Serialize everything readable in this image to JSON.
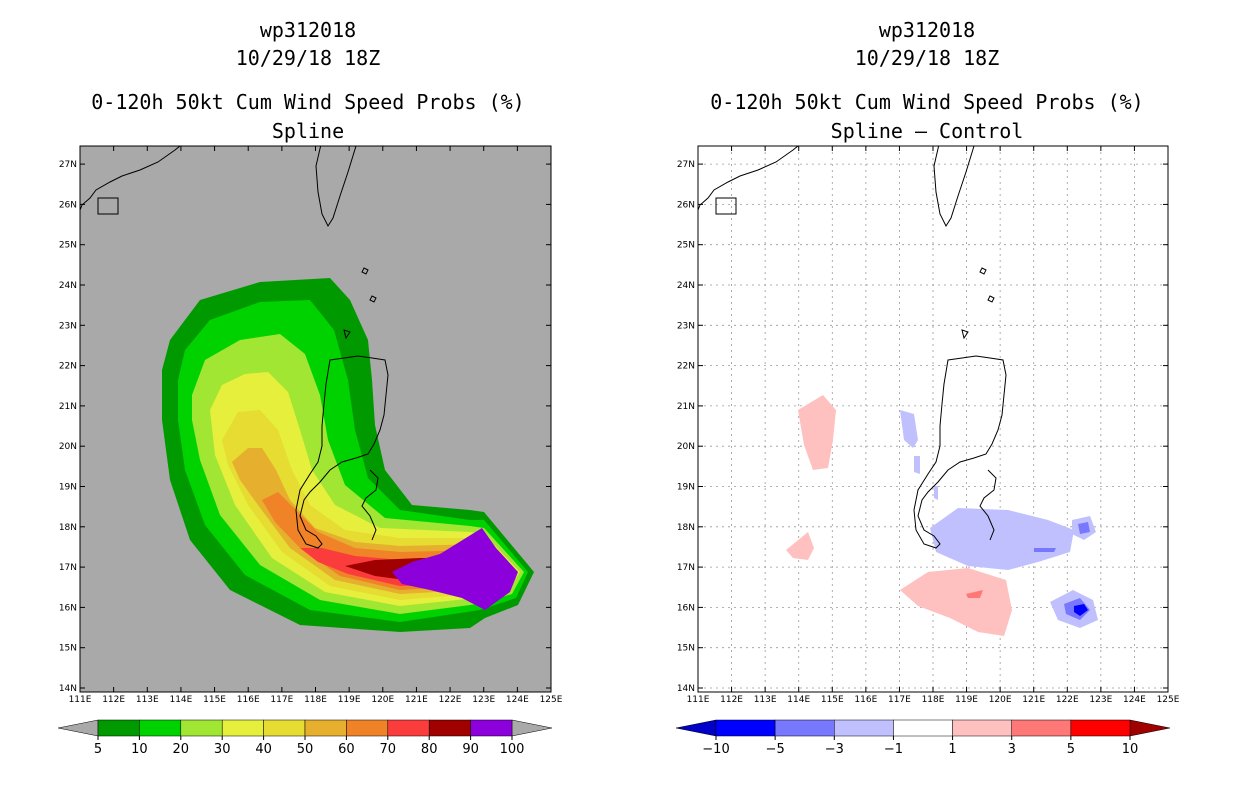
{
  "left": {
    "storm": "wp312018",
    "datetime": "10/29/18 18Z",
    "product": "0-120h 50kt Cum Wind Speed Probs (%)",
    "subtitle": "Spline",
    "colorbar_labels": [
      "5",
      "10",
      "20",
      "30",
      "40",
      "50",
      "60",
      "70",
      "80",
      "90",
      "100"
    ]
  },
  "right": {
    "storm": "wp312018",
    "datetime": "10/29/18 18Z",
    "product": "0-120h 50kt Cum Wind Speed Probs (%)",
    "subtitle": "Spline – Control",
    "colorbar_labels": [
      "−10",
      "−5",
      "−3",
      "−1",
      "1",
      "3",
      "5",
      "10"
    ]
  },
  "lon_labels": [
    "111E",
    "112E",
    "113E",
    "114E",
    "115E",
    "116E",
    "117E",
    "118E",
    "119E",
    "120E",
    "121E",
    "122E",
    "123E",
    "124E",
    "125E"
  ],
  "lat_labels": [
    "14N",
    "15N",
    "16N",
    "17N",
    "18N",
    "19N",
    "20N",
    "21N",
    "22N",
    "23N",
    "24N",
    "25N",
    "26N",
    "27N"
  ],
  "colors": {
    "left_bins": [
      "#009a00",
      "#00d200",
      "#a0e632",
      "#e6f03c",
      "#e6dc32",
      "#e6af2d",
      "#f08228",
      "#fa3c3c",
      "#a00000",
      "#8c00dc"
    ],
    "right_bins": [
      "#0000c8",
      "#0000ff",
      "#7878ff",
      "#c0c0ff",
      "#ffffff",
      "#ffc0c0",
      "#ff7878",
      "#ff0000",
      "#a00000"
    ],
    "land_bg": "#a9a9a9"
  }
}
